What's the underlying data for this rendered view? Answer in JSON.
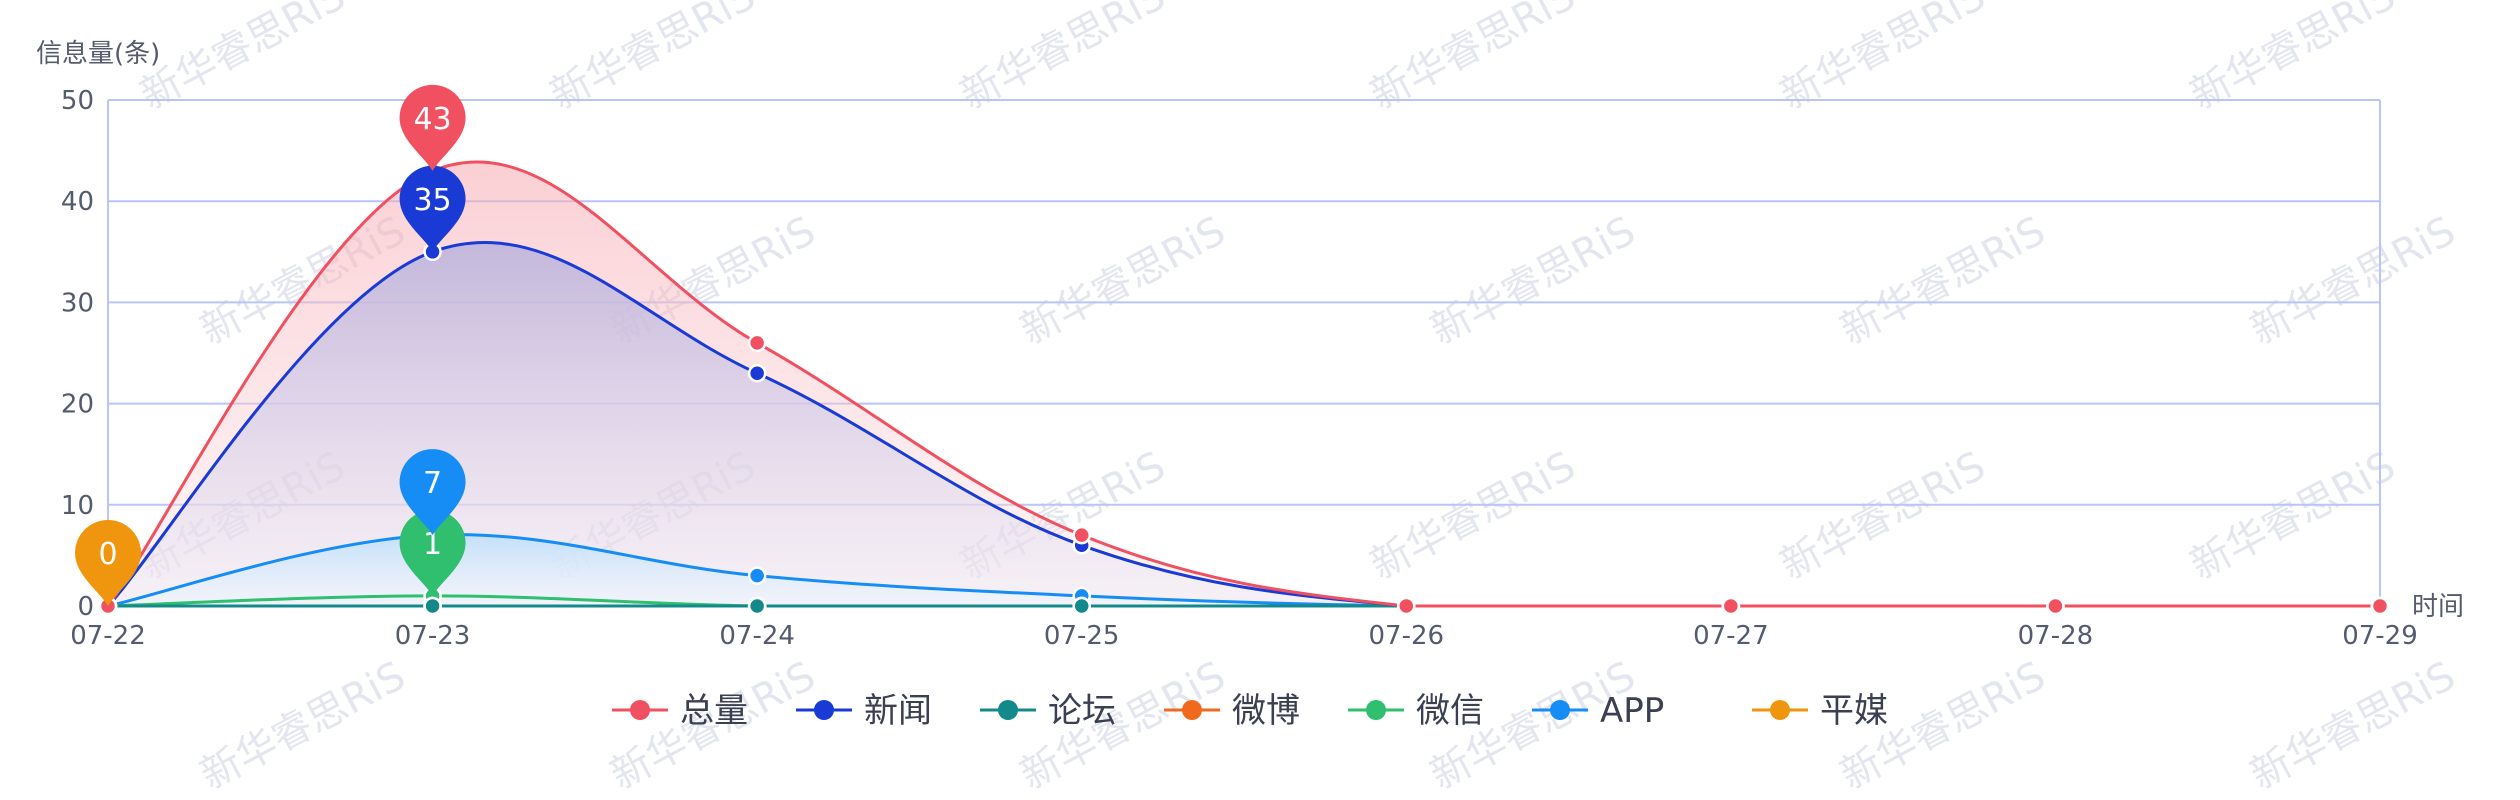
{
  "chart_data": {
    "type": "line",
    "ylabel": "信息量(条)",
    "xlabel": "时间",
    "categories": [
      "07-22",
      "07-23",
      "07-24",
      "07-25",
      "07-26",
      "07-27",
      "07-28",
      "07-29"
    ],
    "ylim": [
      0,
      50
    ],
    "yticks": [
      0,
      10,
      20,
      30,
      40,
      50
    ],
    "grid": true,
    "legend_position": "bottom-center",
    "series": [
      {
        "name": "总量",
        "color": "#f0505f",
        "values": [
          0,
          43,
          26,
          7,
          0,
          0,
          0,
          0
        ],
        "area": true
      },
      {
        "name": "新闻",
        "color": "#1a3ad6",
        "values": [
          0,
          35,
          23,
          6,
          0,
          0,
          0,
          0
        ],
        "area": true
      },
      {
        "name": "论坛",
        "color": "#14898a",
        "values": [
          0,
          0,
          0,
          0,
          0,
          0,
          0,
          0
        ]
      },
      {
        "name": "微博",
        "color": "#f06a1e",
        "values": [
          0,
          0,
          0,
          0,
          0,
          0,
          0,
          0
        ]
      },
      {
        "name": "微信",
        "color": "#2fbf6e",
        "values": [
          0,
          1,
          0,
          0,
          0,
          0,
          0,
          0
        ]
      },
      {
        "name": "APP",
        "color": "#168cf5",
        "values": [
          0,
          7,
          3,
          1,
          0,
          0,
          0,
          0
        ],
        "area": true
      },
      {
        "name": "平媒",
        "color": "#f0960e",
        "values": [
          0,
          0,
          0,
          0,
          0,
          0,
          0,
          0
        ]
      }
    ],
    "max_markers": [
      {
        "series": "总量",
        "category": "07-23",
        "value": 43
      },
      {
        "series": "新闻",
        "category": "07-23",
        "value": 35
      },
      {
        "series": "APP",
        "category": "07-23",
        "value": 7
      },
      {
        "series": "微信",
        "category": "07-23",
        "value": 1
      },
      {
        "series": "平媒",
        "category": "07-22",
        "value": 0
      }
    ]
  },
  "watermark": "新华睿思RiS"
}
